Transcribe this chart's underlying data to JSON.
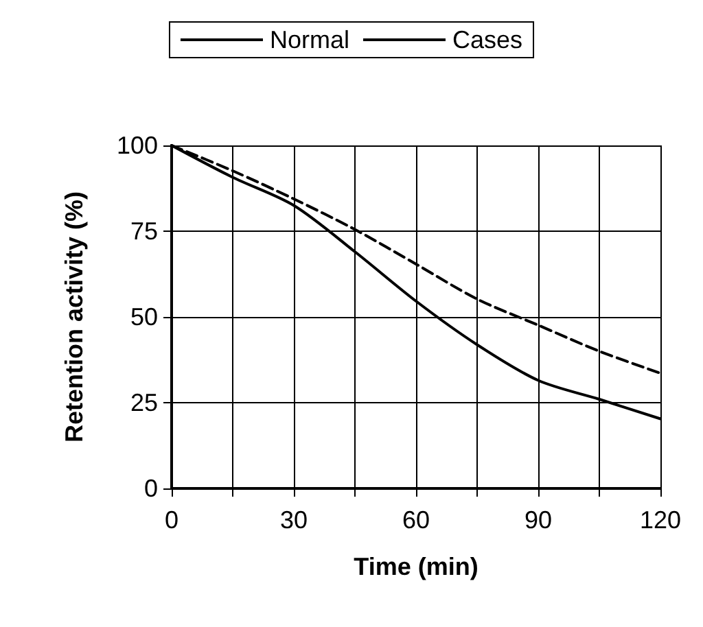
{
  "chart_data": {
    "type": "line",
    "xlabel": "Time (min)",
    "ylabel": "Retention activity (%)",
    "x": [
      0,
      15,
      30,
      45,
      60,
      75,
      90,
      105,
      120
    ],
    "series": [
      {
        "name": "Normal",
        "color": "#000000",
        "line_style": "solid",
        "values": [
          100,
          90.7,
          82.5,
          69,
          54.6,
          41.9,
          31.5,
          26,
          20.3
        ]
      },
      {
        "name": "Cases",
        "color": "#000000",
        "line_style": "dashed",
        "values": [
          100,
          92.6,
          84.4,
          75.5,
          65.4,
          55.2,
          47.6,
          40,
          33.6
        ]
      }
    ],
    "xlim": [
      0,
      120
    ],
    "xticks": [
      0,
      {
        "value": 15,
        "label": null
      },
      30,
      {
        "value": 45,
        "label": null
      },
      60,
      {
        "value": 75,
        "label": null
      },
      90,
      {
        "value": 105,
        "label": null
      },
      120
    ],
    "ylim": [
      0,
      100
    ],
    "yticks": [
      0,
      25,
      50,
      75,
      100
    ],
    "grid": true,
    "legend": "top",
    "marker": "none"
  }
}
